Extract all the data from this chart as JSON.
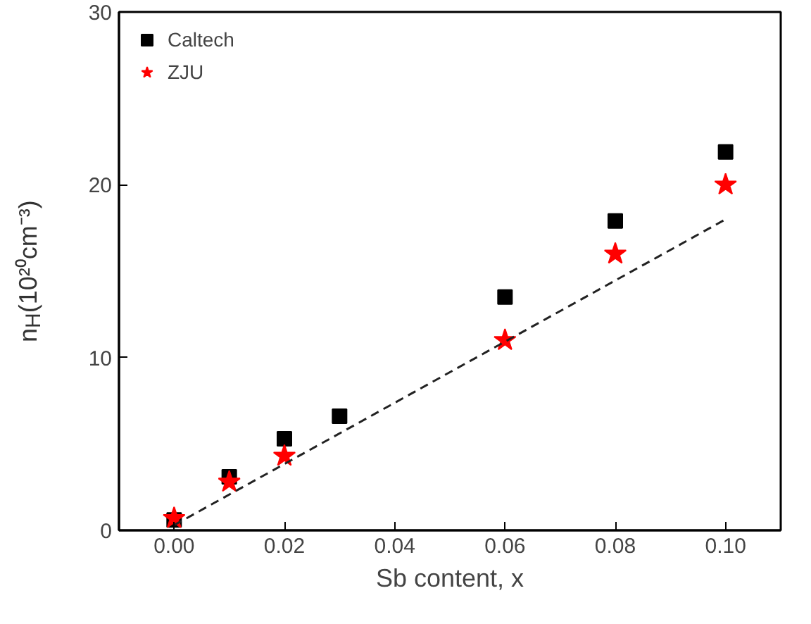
{
  "chart_data": {
    "type": "scatter",
    "xlabel": "Sb content, x",
    "ylabel": "n$_{H}$(10²⁰cm⁻³)",
    "xlim": [
      -0.01,
      0.11
    ],
    "ylim": [
      0,
      30
    ],
    "xticks": [
      {
        "value": 0,
        "label": "0.00"
      },
      {
        "value": 0.02,
        "label": "0.02"
      },
      {
        "value": 0.04,
        "label": "0.04"
      },
      {
        "value": 0.06,
        "label": "0.06"
      },
      {
        "value": 0.08,
        "label": "0.08"
      },
      {
        "value": 0.1,
        "label": "0.10"
      }
    ],
    "yticks": [
      0,
      10,
      20,
      30
    ],
    "grid": false,
    "legend": "top left",
    "series": [
      {
        "name": "Caltech",
        "color": "#000000",
        "marker": "square",
        "x": [
          0,
          0.01,
          0.02,
          0.03,
          0.06,
          0.08,
          0.1
        ],
        "values": [
          0.6,
          3.1,
          5.3,
          6.6,
          13.5,
          17.9,
          21.9
        ]
      },
      {
        "name": "ZJU",
        "color": "#ff0000",
        "marker": "star",
        "x": [
          0,
          0.01,
          0.02,
          0.06,
          0.08,
          0.1
        ],
        "values": [
          0.7,
          2.8,
          4.3,
          11.0,
          16.0,
          20.0
        ]
      },
      {
        "type": "line",
        "color": "#222222",
        "line_style": "dashed",
        "marker": "none",
        "x": [
          0,
          0.1
        ],
        "values": [
          0.3,
          18.0
        ]
      }
    ]
  }
}
